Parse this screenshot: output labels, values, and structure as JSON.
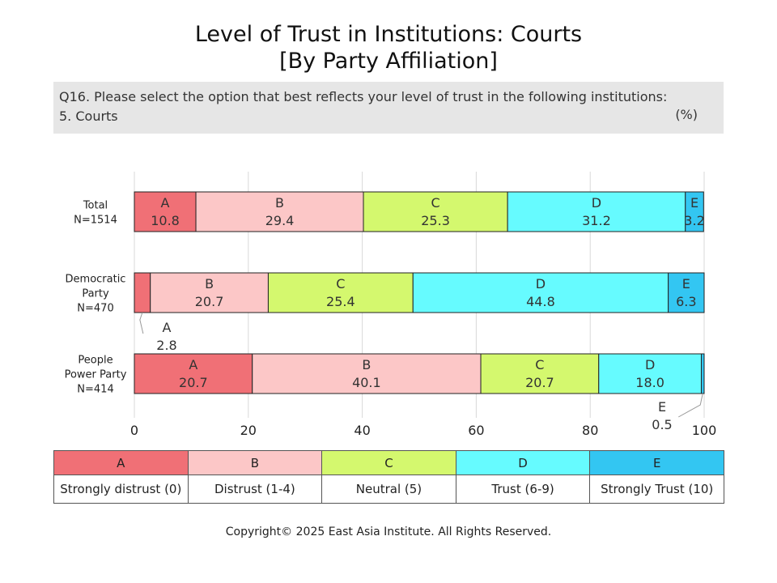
{
  "title_line1": "Level of Trust in Institutions: Courts",
  "title_line2": "[By Party Affiliation]",
  "question_line1": "Q16. Please select the option that best reflects your level of trust in the following institutions:",
  "question_line2": "5. Courts",
  "unit_label": "(%)",
  "chart_data": {
    "type": "bar",
    "orientation": "horizontal",
    "stacked": true,
    "categories": [
      [
        "Total",
        "N=1514"
      ],
      [
        "Democratic",
        "Party",
        "N=470"
      ],
      [
        "People",
        "Power Party",
        "N=414"
      ]
    ],
    "series": [
      {
        "key": "A",
        "name": "Strongly distrust (0)",
        "color": "#f07076",
        "values": [
          10.8,
          2.8,
          20.7
        ]
      },
      {
        "key": "B",
        "name": "Distrust (1-4)",
        "color": "#fcc7c7",
        "values": [
          29.4,
          20.7,
          40.1
        ]
      },
      {
        "key": "C",
        "name": "Neutral (5)",
        "color": "#d4f86e",
        "values": [
          25.3,
          25.4,
          20.7
        ]
      },
      {
        "key": "D",
        "name": "Trust (6-9)",
        "color": "#66fbff",
        "values": [
          31.2,
          44.8,
          18.0
        ]
      },
      {
        "key": "E",
        "name": "Strongly Trust (10)",
        "color": "#33c6f2",
        "values": [
          3.2,
          6.3,
          0.5
        ]
      }
    ],
    "value_labels": [
      [
        "10.8",
        "29.4",
        "25.3",
        "31.2",
        "3.2"
      ],
      [
        "2.8",
        "20.7",
        "25.4",
        "44.8",
        "6.3"
      ],
      [
        "20.7",
        "40.1",
        "20.7",
        "18.0",
        "0.5"
      ]
    ],
    "xlim": [
      0,
      100
    ],
    "xticks": [
      0,
      20,
      40,
      60,
      80,
      100
    ],
    "grid": true
  },
  "legend": {
    "keys": [
      "A",
      "B",
      "C",
      "D",
      "E"
    ],
    "descriptions": [
      "Strongly distrust (0)",
      "Distrust (1-4)",
      "Neutral (5)",
      "Trust (6-9)",
      "Strongly Trust (10)"
    ],
    "colors": [
      "#f07076",
      "#fcc7c7",
      "#d4f86e",
      "#66fbff",
      "#33c6f2"
    ]
  },
  "copyright": "Copyright© 2025 East Asia Institute. All Rights Reserved."
}
